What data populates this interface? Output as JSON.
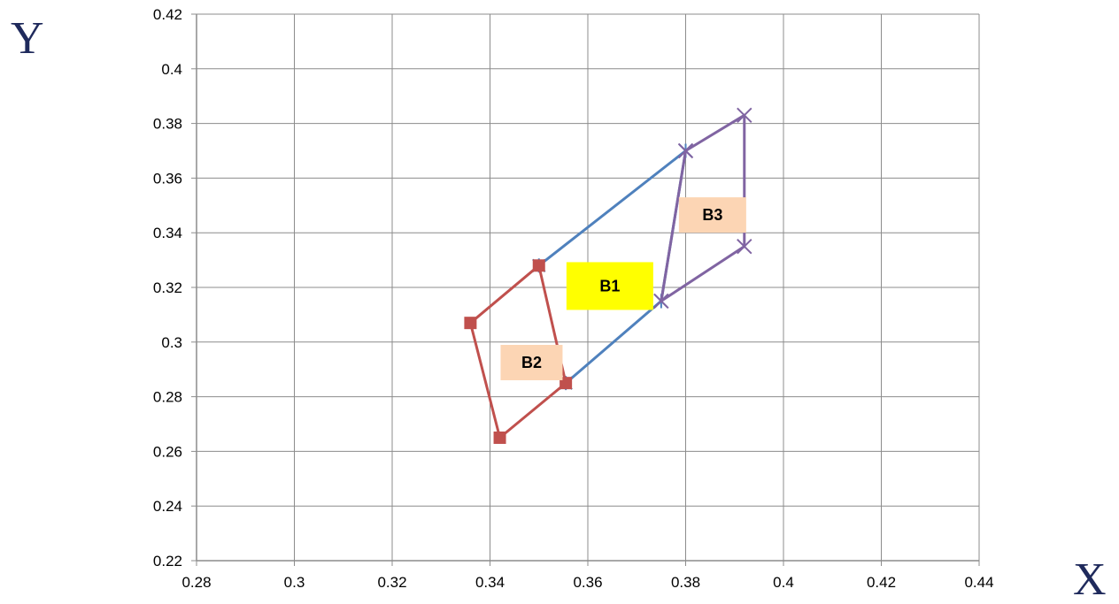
{
  "chart_data": {
    "type": "line",
    "title": "",
    "xlabel": "X",
    "ylabel": "Y",
    "xlim": [
      0.28,
      0.44
    ],
    "ylim": [
      0.22,
      0.42
    ],
    "x_ticks": [
      "0.28",
      "0.3",
      "0.32",
      "0.34",
      "0.36",
      "0.38",
      "0.4",
      "0.42",
      "0.44"
    ],
    "y_ticks": [
      "0.22",
      "0.24",
      "0.26",
      "0.28",
      "0.3",
      "0.32",
      "0.34",
      "0.36",
      "0.38",
      "0.4",
      "0.42"
    ],
    "grid": true,
    "legend": false,
    "series": [
      {
        "color": "#4f81bd",
        "marker": "asterisk",
        "points": [
          {
            "x": 0.35,
            "y": 0.328
          },
          {
            "x": 0.38,
            "y": 0.37
          },
          {
            "x": 0.375,
            "y": 0.315
          },
          {
            "x": 0.3555,
            "y": 0.285
          }
        ]
      },
      {
        "color": "#c0504d",
        "marker": "square",
        "points": [
          {
            "x": 0.336,
            "y": 0.307
          },
          {
            "x": 0.35,
            "y": 0.328
          },
          {
            "x": 0.3555,
            "y": 0.285
          },
          {
            "x": 0.342,
            "y": 0.265
          },
          {
            "x": 0.336,
            "y": 0.307
          }
        ]
      },
      {
        "color": "#8064a2",
        "marker": "x",
        "points": [
          {
            "x": 0.38,
            "y": 0.37
          },
          {
            "x": 0.392,
            "y": 0.383
          },
          {
            "x": 0.392,
            "y": 0.335
          },
          {
            "x": 0.375,
            "y": 0.315
          },
          {
            "x": 0.38,
            "y": 0.37
          }
        ]
      }
    ],
    "annotations": [
      {
        "text": "B1",
        "x": 0.3645,
        "y": 0.3205,
        "background": "#ffff00"
      },
      {
        "text": "B2",
        "x": 0.3485,
        "y": 0.2925,
        "background": "#fcd5b4"
      },
      {
        "text": "B3",
        "x": 0.3855,
        "y": 0.3465,
        "background": "#fcd5b4"
      }
    ]
  }
}
